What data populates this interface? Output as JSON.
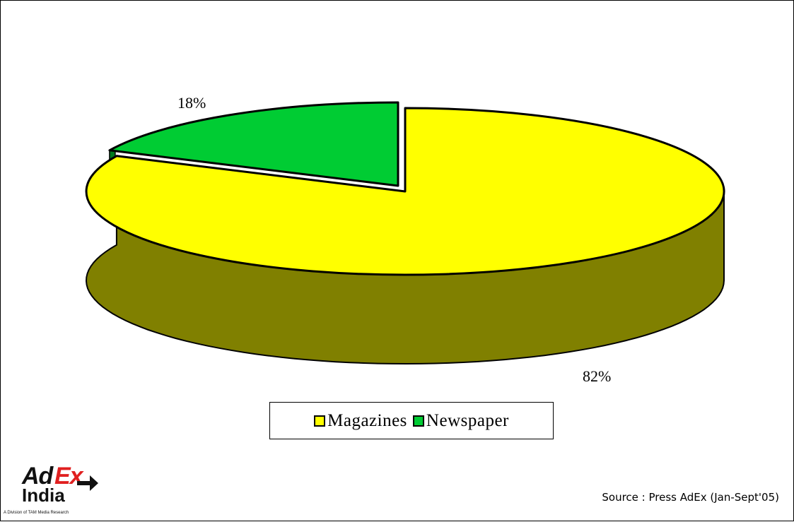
{
  "chart_data": {
    "type": "pie",
    "style": "3d",
    "categories": [
      "Magazines",
      "Newspaper"
    ],
    "values": [
      82,
      18
    ],
    "data_labels": [
      "82%",
      "18%"
    ],
    "colors": {
      "Magazines": "#ffff00",
      "Magazines_side": "#808000",
      "Newspaper": "#00cc33",
      "Newspaper_side": "#007a1f"
    },
    "exploded": "Newspaper",
    "legend": {
      "placement": "bottom-center",
      "items": [
        {
          "label": "Magazines",
          "color": "#ffff00"
        },
        {
          "label": "Newspaper",
          "color": "#00cc33"
        }
      ]
    }
  },
  "source_text": "Source : Press AdEx (Jan-Sept'05)",
  "logo": {
    "ad": "Ad",
    "ex": "Ex",
    "india": "India",
    "tagline": "A Division of TAM Media Research",
    "accent": "#e02020"
  }
}
